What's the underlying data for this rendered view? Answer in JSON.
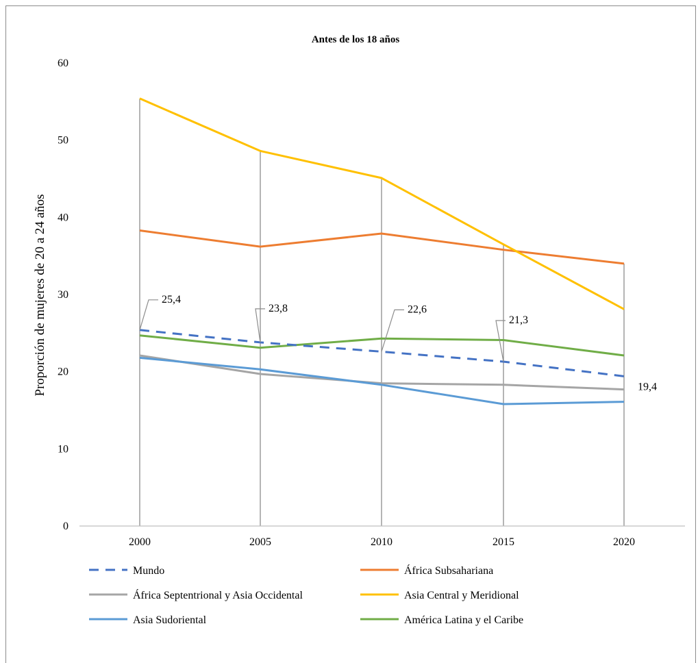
{
  "chart_data": {
    "type": "line",
    "title": "Antes de los 18 años",
    "xlabel": "",
    "ylabel": "Proporción de mujeres de 20 a 24 años",
    "x": [
      "2000",
      "2005",
      "2010",
      "2015",
      "2020"
    ],
    "yticks": [
      "0",
      "10",
      "20",
      "30",
      "40",
      "50",
      "60"
    ],
    "ylim": [
      0,
      60
    ],
    "grid": "vertical drop lines at each x",
    "legend_position": "bottom",
    "series": [
      {
        "name": "Mundo",
        "values": [
          25.4,
          23.8,
          22.6,
          21.3,
          19.4
        ],
        "color": "#4472c4",
        "dashed": true,
        "labels": [
          "25,4",
          "23,8",
          "22,6",
          "21,3",
          "19,4"
        ]
      },
      {
        "name": "África Subsahariana",
        "values": [
          38.3,
          36.2,
          37.9,
          35.8,
          34.0
        ],
        "color": "#ed7d31",
        "dashed": false
      },
      {
        "name": "África Septentrional y Asia Occidental",
        "values": [
          22.1,
          19.7,
          18.5,
          18.3,
          17.7
        ],
        "color": "#a5a5a5",
        "dashed": false
      },
      {
        "name": "Asia Central y Meridional",
        "values": [
          55.4,
          48.6,
          45.1,
          36.5,
          28.1
        ],
        "color": "#ffc000",
        "dashed": false
      },
      {
        "name": "Asia Sudoriental",
        "values": [
          21.8,
          20.3,
          18.3,
          15.8,
          16.1
        ],
        "color": "#5b9bd5",
        "dashed": false
      },
      {
        "name": "América Latina y el Caribe",
        "values": [
          24.7,
          23.1,
          24.3,
          24.1,
          22.1
        ],
        "color": "#70ad47",
        "dashed": false
      }
    ]
  }
}
